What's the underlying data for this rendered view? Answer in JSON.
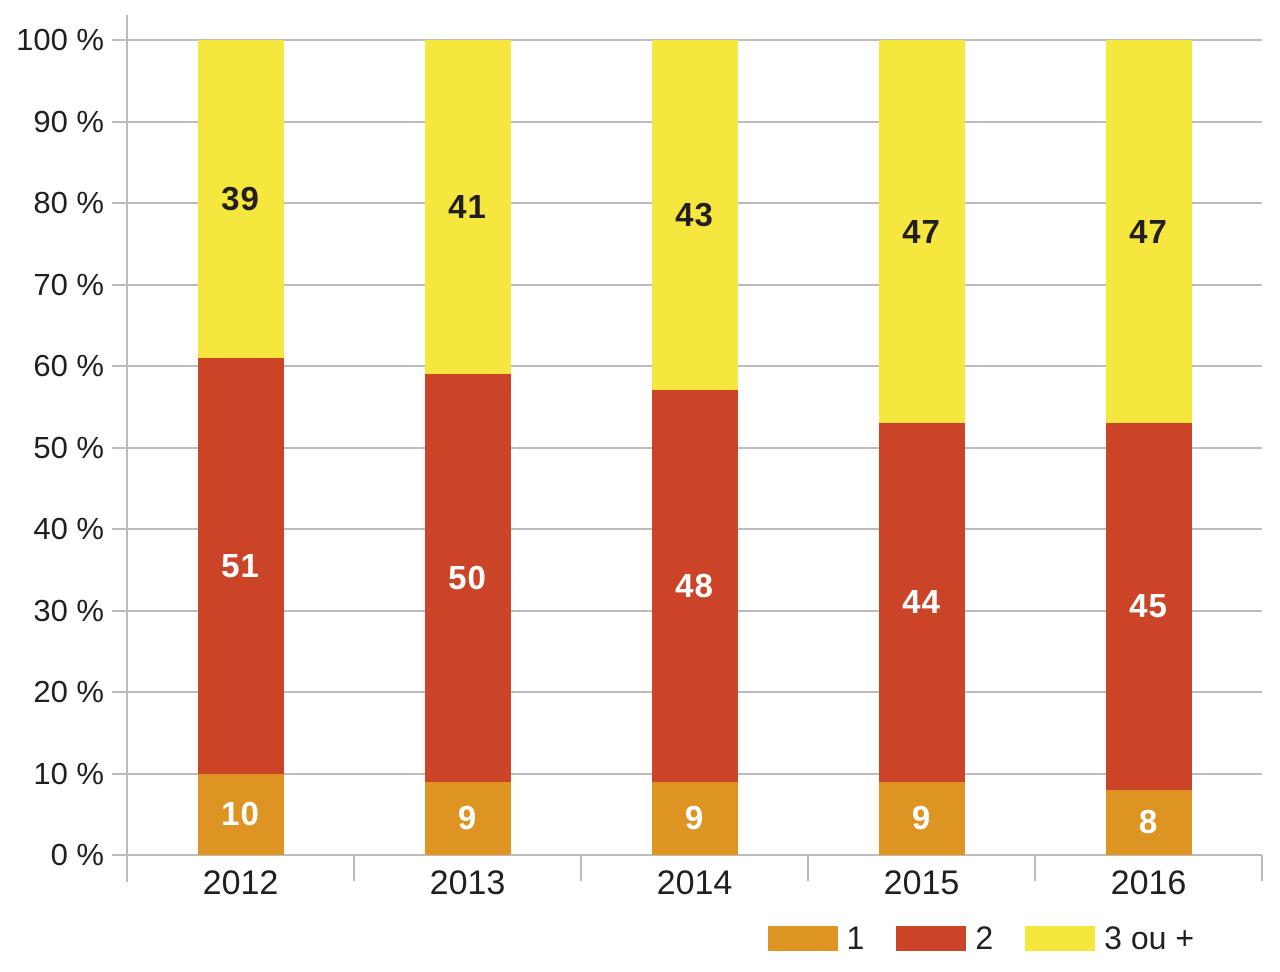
{
  "chart_data": {
    "type": "bar",
    "stacked": true,
    "title": "",
    "categories": [
      "2012",
      "2013",
      "2014",
      "2015",
      "2016"
    ],
    "series": [
      {
        "name": "1",
        "color": "#DE9422",
        "label_color": "#FFFFFF",
        "values": [
          10,
          9,
          9,
          9,
          8
        ]
      },
      {
        "name": "2",
        "color": "#CB4428",
        "label_color": "#FFFFFF",
        "values": [
          51,
          50,
          48,
          44,
          45
        ]
      },
      {
        "name": "3 ou +",
        "color": "#F5E73D",
        "label_color": "#231F20",
        "values": [
          39,
          41,
          43,
          47,
          47
        ]
      }
    ],
    "y_axis": {
      "min": 0,
      "max": 100,
      "step": 10,
      "ticks": [
        "0 %",
        "10 %",
        "20 %",
        "30 %",
        "40 %",
        "50 %",
        "60 %",
        "70 %",
        "80 %",
        "90 %",
        "100 %"
      ]
    },
    "xlabel": "",
    "ylabel": "",
    "grid": true,
    "legend": {
      "position": "bottom-right",
      "entries": [
        "1",
        "2",
        "3 ou +"
      ]
    },
    "colors": {
      "grid": "#BCBCBC",
      "axis": "#BCBCBC",
      "text": "#231F20",
      "background": "#FFFFFF"
    }
  }
}
